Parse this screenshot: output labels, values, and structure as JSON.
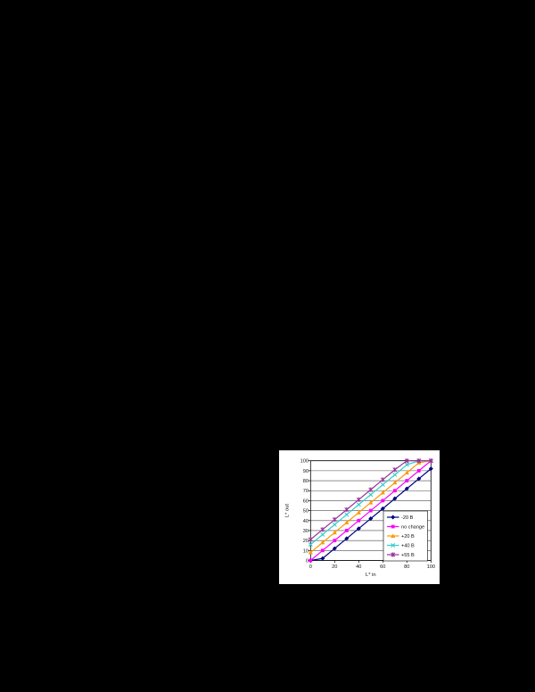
{
  "page": {
    "background": "#000000"
  },
  "chart_window": {
    "background": "#ffffff"
  },
  "chart_data": {
    "type": "line",
    "title": "",
    "xlabel": "L* in",
    "ylabel": "L* out",
    "xlim": [
      0,
      100
    ],
    "ylim": [
      0,
      100
    ],
    "x_ticks": [
      0,
      20,
      40,
      60,
      80,
      100
    ],
    "y_ticks": [
      0,
      10,
      20,
      30,
      40,
      50,
      60,
      70,
      80,
      90,
      100
    ],
    "grid": "horizontal",
    "legend_position": "inside-bottom-right",
    "x": [
      0,
      10,
      20,
      30,
      40,
      50,
      60,
      70,
      80,
      90,
      100
    ],
    "series": [
      {
        "name": "-20 B",
        "color": "#000080",
        "marker": "diamond",
        "values": [
          0,
          2,
          12,
          22,
          32,
          42,
          52,
          62,
          72,
          82,
          92
        ]
      },
      {
        "name": "no change",
        "color": "#FF00FF",
        "marker": "square",
        "values": [
          0,
          10,
          20,
          30,
          40,
          50,
          60,
          70,
          80,
          90,
          100
        ]
      },
      {
        "name": "+20 B",
        "color": "#FF9900",
        "marker": "triangle",
        "values": [
          8,
          18,
          28,
          38,
          48,
          58,
          68,
          78,
          88,
          98,
          100
        ]
      },
      {
        "name": "+40 B",
        "color": "#33CCCC",
        "marker": "x",
        "values": [
          16,
          26,
          36,
          46,
          56,
          66,
          76,
          86,
          96,
          100,
          100
        ]
      },
      {
        "name": "+55 B",
        "color": "#993399",
        "marker": "star",
        "values": [
          21,
          31,
          41,
          51,
          61,
          71,
          81,
          91,
          100,
          100,
          100
        ]
      }
    ],
    "axis_color": "#000000",
    "gridline_color": "#4d4d4d"
  }
}
